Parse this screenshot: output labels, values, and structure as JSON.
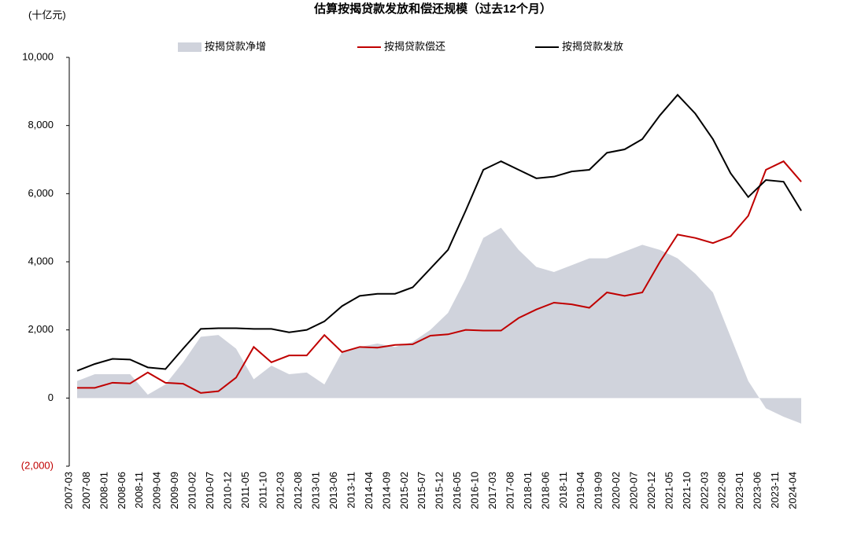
{
  "chart_data": {
    "type": "line",
    "title": "估算按揭贷款发放和偿还规模（过去12个月）",
    "y_axis_label": "(十亿元)",
    "categories": [
      "2007-03",
      "2007-08",
      "2008-01",
      "2008-06",
      "2008-11",
      "2009-04",
      "2009-09",
      "2010-02",
      "2010-07",
      "2010-12",
      "2011-05",
      "2011-10",
      "2012-03",
      "2012-08",
      "2013-01",
      "2013-06",
      "2013-11",
      "2014-04",
      "2014-09",
      "2015-02",
      "2015-07",
      "2015-12",
      "2016-05",
      "2016-10",
      "2017-03",
      "2017-08",
      "2018-01",
      "2018-06",
      "2018-11",
      "2019-04",
      "2019-09",
      "2020-02",
      "2020-07",
      "2020-12",
      "2021-05",
      "2021-10",
      "2022-03",
      "2022-08",
      "2023-01",
      "2023-06",
      "2023-11",
      "2024-04"
    ],
    "series": [
      {
        "name": "按揭贷款净增",
        "kind": "area",
        "color": "#d0d3dc",
        "values": [
          500,
          700,
          700,
          700,
          100,
          400,
          1050,
          1800,
          1850,
          1450,
          550,
          950,
          700,
          750,
          400,
          1350,
          1500,
          1600,
          1500,
          1650,
          2000,
          2500,
          3500,
          4700,
          5000,
          4350,
          3850,
          3700,
          3900,
          4100,
          4100,
          4300,
          4500,
          4350,
          4100,
          3650,
          3100,
          1800,
          500,
          -300,
          -550,
          -750
        ]
      },
      {
        "name": "按揭贷款偿还",
        "kind": "line",
        "color": "#c00000",
        "values": [
          300,
          300,
          450,
          430,
          750,
          450,
          420,
          150,
          200,
          600,
          1500,
          1050,
          1250,
          1250,
          1850,
          1350,
          1500,
          1480,
          1560,
          1580,
          1830,
          1870,
          2000,
          1980,
          1980,
          2350,
          2600,
          2800,
          2750,
          2650,
          3100,
          3000,
          3100,
          4000,
          4800,
          4700,
          4550,
          4750,
          5350,
          6700,
          6950,
          6350
        ]
      },
      {
        "name": "按揭贷款发放",
        "kind": "line",
        "color": "#000000",
        "values": [
          800,
          1000,
          1150,
          1130,
          900,
          850,
          1450,
          2030,
          2050,
          2050,
          2030,
          2030,
          1930,
          2000,
          2250,
          2700,
          3000,
          3060,
          3060,
          3250,
          3800,
          4350,
          5500,
          6700,
          6950,
          6700,
          6450,
          6500,
          6650,
          6700,
          7200,
          7300,
          7600,
          8300,
          8900,
          8350,
          7600,
          6600,
          5900,
          6400,
          6350,
          5500
        ]
      }
    ],
    "ylim": [
      -2000,
      10000
    ],
    "yticks": [
      {
        "value": -2000,
        "label": "(2,000)"
      },
      0,
      {
        "value": 2000,
        "label": "2,000"
      },
      {
        "value": 4000,
        "label": "4,000"
      },
      {
        "value": 6000,
        "label": "6,000"
      },
      {
        "value": 8000,
        "label": "8,000"
      },
      {
        "value": 10000,
        "label": "10,000"
      }
    ],
    "negative_tick_color": "#c00000",
    "grid": false,
    "legend": "top"
  }
}
